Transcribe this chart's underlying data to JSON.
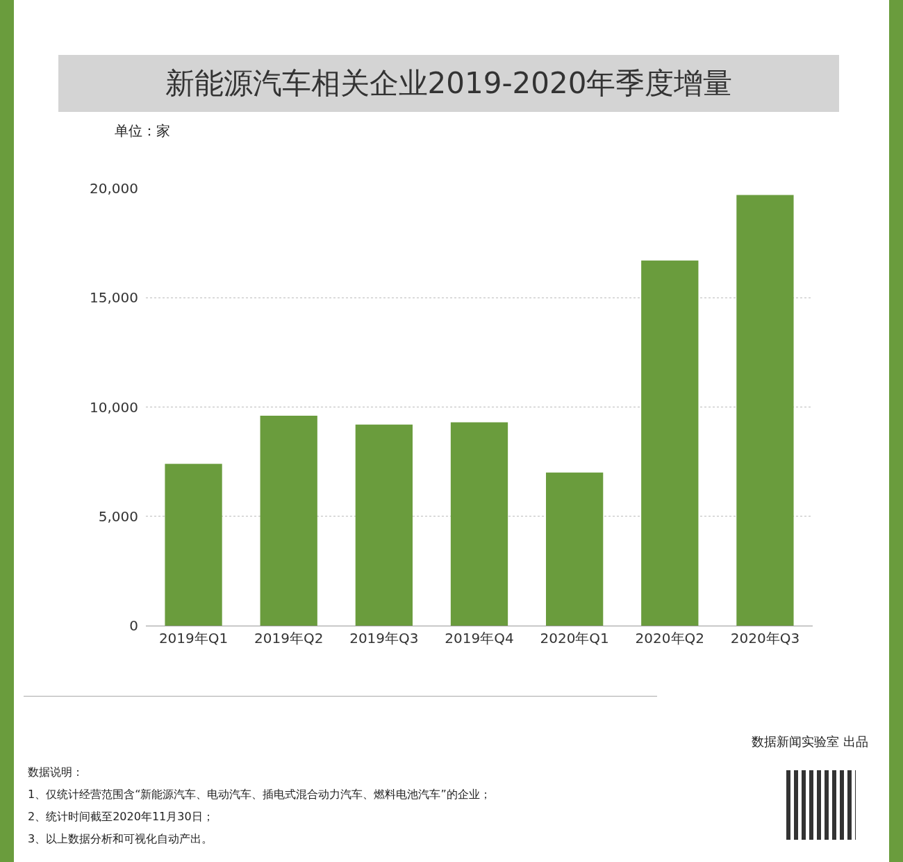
{
  "chart_data": {
    "type": "bar",
    "title": "新能源汽车相关企业2019-2020年季度增量",
    "ylabel": "单位：家",
    "categories": [
      "2019年Q1",
      "2019年Q2",
      "2019年Q3",
      "2019年Q4",
      "2020年Q1",
      "2020年Q2",
      "2020年Q3"
    ],
    "values": [
      7400,
      9600,
      9200,
      9300,
      7000,
      16700,
      19700
    ],
    "color": "#6a9c3d",
    "ylim": [
      0,
      20000
    ],
    "yticks": [
      {
        "value": 0,
        "label": "0"
      },
      {
        "value": 5000,
        "label": "5,000"
      },
      {
        "value": 10000,
        "label": "10,000"
      },
      {
        "value": 15000,
        "label": "15,000"
      },
      {
        "value": 20000,
        "label": "20,000"
      }
    ],
    "grid": "y",
    "annotations": [
      "数据新闻实验室 出品",
      "数据说明：",
      "1、仅统计经营范围含“新能源汽车、电动汽车、插电式混合动力汽车、燃料电池汽车”的企业；",
      "2、统计时间截至2020年11月30日；",
      "3、以上数据分析和可视化自动产出。"
    ]
  }
}
